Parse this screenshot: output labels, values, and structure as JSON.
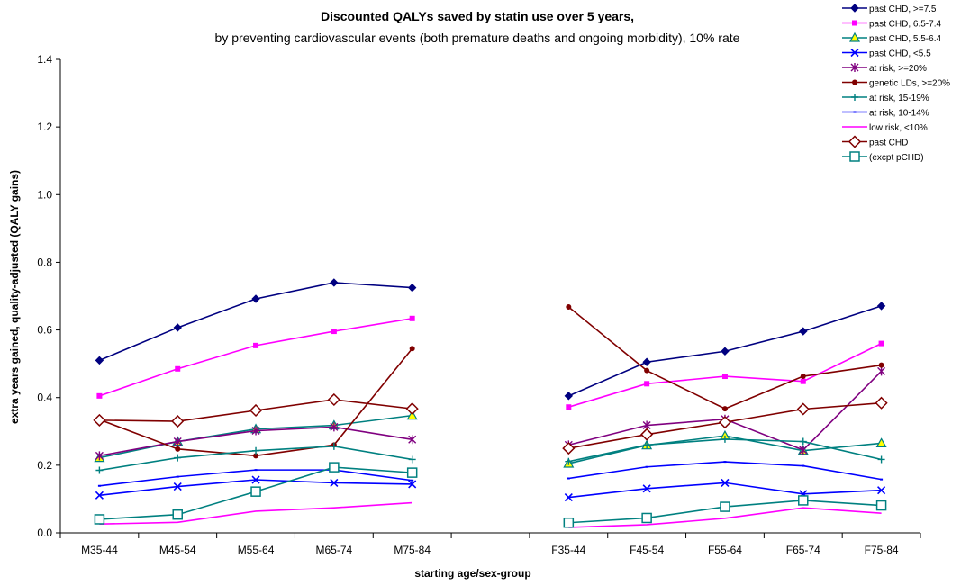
{
  "chart_data": {
    "type": "line",
    "title": "Discounted QALYs saved by statin use over 5 years,",
    "subtitle": "by preventing cardiovascular events (both premature deaths and ongoing morbidity), 10% rate",
    "xlabel": "starting age/sex-group",
    "ylabel": "extra years gained, quality-adjusted (QALY gains)",
    "ylim": [
      0,
      1.4
    ],
    "yticks": [
      "0.0",
      "0.2",
      "0.4",
      "0.6",
      "0.8",
      "1.0",
      "1.2",
      "1.4"
    ],
    "categories": [
      "M35-44",
      "M45-54",
      "M55-64",
      "M65-74",
      "M75-84",
      "",
      "F35-44",
      "F45-54",
      "F55-64",
      "F65-74",
      "F75-84"
    ],
    "legend_position": "top-right",
    "series": [
      {
        "name": "past CHD, >=7.5",
        "color": "#000080",
        "marker": "diamond-filled",
        "values": [
          0.51,
          0.607,
          0.692,
          0.74,
          0.725,
          null,
          0.405,
          0.505,
          0.537,
          0.596,
          0.671
        ]
      },
      {
        "name": "past CHD, 6.5-7.4",
        "color": "#ff00ff",
        "marker": "square-filled",
        "values": [
          0.405,
          0.485,
          0.554,
          0.596,
          0.634,
          null,
          0.372,
          0.441,
          0.463,
          0.448,
          0.56
        ]
      },
      {
        "name": "past CHD, 5.5-6.4",
        "color": "#008080",
        "marker": "triangle-yellow",
        "values": [
          0.222,
          0.27,
          0.307,
          0.318,
          0.347,
          null,
          0.205,
          0.259,
          0.287,
          0.243,
          0.265
        ]
      },
      {
        "name": "past CHD, <5.5",
        "color": "#0000ff",
        "marker": "x",
        "values": [
          0.111,
          0.137,
          0.157,
          0.148,
          0.144,
          null,
          0.105,
          0.131,
          0.148,
          0.115,
          0.126
        ]
      },
      {
        "name": "at risk, >=20%",
        "color": "#800080",
        "marker": "star",
        "values": [
          0.228,
          0.27,
          0.302,
          0.313,
          0.276,
          null,
          0.26,
          0.318,
          0.336,
          0.245,
          0.478
        ]
      },
      {
        "name": "genetic LDs, >=20%",
        "color": "#800000",
        "marker": "circle-filled",
        "values": [
          0.335,
          0.248,
          0.228,
          0.26,
          0.545,
          null,
          0.668,
          0.48,
          0.367,
          0.463,
          0.496
        ]
      },
      {
        "name": "at risk, 15-19%",
        "color": "#008080",
        "marker": "plus",
        "values": [
          0.185,
          0.222,
          0.243,
          0.256,
          0.217,
          null,
          0.211,
          0.26,
          0.277,
          0.27,
          0.217
        ]
      },
      {
        "name": "at risk, 10-14%",
        "color": "#0000ff",
        "marker": "dash",
        "values": [
          0.139,
          0.166,
          0.186,
          0.186,
          0.155,
          null,
          0.161,
          0.195,
          0.21,
          0.198,
          0.158
        ]
      },
      {
        "name": "low risk, <10%",
        "color": "#ff00ff",
        "marker": "none",
        "values": [
          0.026,
          0.031,
          0.064,
          0.074,
          0.089,
          null,
          0.016,
          0.024,
          0.043,
          0.074,
          0.058
        ]
      },
      {
        "name": "past CHD",
        "color": "#800000",
        "marker": "diamond-open",
        "values": [
          0.333,
          0.33,
          0.362,
          0.394,
          0.367,
          null,
          0.25,
          0.291,
          0.327,
          0.366,
          0.384
        ]
      },
      {
        "name": "(excpt pCHD)",
        "color": "#008080",
        "marker": "square-open",
        "values": [
          0.04,
          0.054,
          0.122,
          0.194,
          0.178,
          null,
          0.03,
          0.044,
          0.077,
          0.096,
          0.081
        ]
      }
    ]
  }
}
